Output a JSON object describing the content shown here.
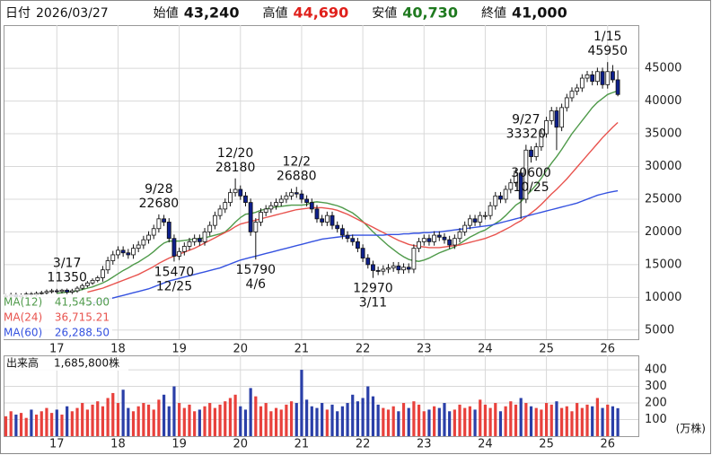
{
  "header": {
    "items": [
      {
        "label": "日付",
        "value": "2026/03/27",
        "color": "#111111"
      },
      {
        "label": "始値",
        "value": "43,240",
        "color": "#111111"
      },
      {
        "label": "高値",
        "value": "44,690",
        "color": "#e0201b"
      },
      {
        "label": "安値",
        "value": "40,730",
        "color": "#1f7a1f"
      },
      {
        "label": "終値",
        "value": "41,000",
        "color": "#111111"
      }
    ]
  },
  "chart_data": [
    {
      "type": "candlestick",
      "up_color": "#ffffff",
      "down_color": "#0d1f8c",
      "edge_color": "#111111",
      "grid": true,
      "ylim": [
        3600,
        51600
      ],
      "yticks": [
        5000,
        10000,
        15000,
        20000,
        25000,
        30000,
        35000,
        40000,
        45000
      ],
      "categories": [
        null,
        null,
        null,
        null,
        null,
        null,
        null,
        null,
        null,
        null,
        "17",
        null,
        null,
        null,
        null,
        null,
        null,
        null,
        null,
        null,
        null,
        null,
        "18",
        null,
        null,
        null,
        null,
        null,
        null,
        null,
        null,
        null,
        null,
        null,
        "19",
        null,
        null,
        null,
        null,
        null,
        null,
        null,
        null,
        null,
        null,
        null,
        "20",
        null,
        null,
        null,
        null,
        null,
        null,
        null,
        null,
        null,
        null,
        null,
        "21",
        null,
        null,
        null,
        null,
        null,
        null,
        null,
        null,
        null,
        null,
        null,
        "22",
        null,
        null,
        null,
        null,
        null,
        null,
        null,
        null,
        null,
        null,
        null,
        "23",
        null,
        null,
        null,
        null,
        null,
        null,
        null,
        null,
        null,
        null,
        null,
        "24",
        null,
        null,
        null,
        null,
        null,
        null,
        null,
        null,
        null,
        null,
        null,
        "25",
        null,
        null,
        null,
        null,
        null,
        null,
        null,
        null,
        null,
        null,
        null,
        "26",
        null,
        null
      ],
      "open": [
        10100,
        10200,
        10400,
        10100,
        10300,
        10500,
        10400,
        10600,
        10700,
        10900,
        11000,
        10900,
        11100,
        10800,
        11000,
        11400,
        11800,
        12200,
        12600,
        13000,
        14200,
        15600,
        16500,
        17200,
        16800,
        16500,
        17500,
        18000,
        18800,
        19500,
        20500,
        22000,
        21500,
        19000,
        16300,
        17000,
        17800,
        18500,
        19000,
        18500,
        20000,
        21000,
        22500,
        23500,
        24500,
        26000,
        26500,
        25500,
        24500,
        20000,
        21500,
        23000,
        23500,
        24000,
        24500,
        25000,
        25500,
        26000,
        25800,
        25000,
        24500,
        23500,
        22000,
        21500,
        22500,
        21000,
        20500,
        19500,
        19000,
        18500,
        17500,
        16000,
        15000,
        14100,
        14000,
        14300,
        14500,
        14800,
        14200,
        14600,
        14300,
        17500,
        18500,
        19000,
        18500,
        19500,
        19200,
        18800,
        18000,
        19000,
        20000,
        21000,
        22000,
        21500,
        22500,
        22500,
        24000,
        25500,
        25000,
        26500,
        27500,
        29000,
        25000,
        32500,
        31500,
        33000,
        35000,
        37000,
        38500,
        36000,
        39000,
        40500,
        41500,
        42000,
        43500,
        44000,
        43000,
        44500,
        42500,
        44500,
        43240
      ],
      "high": [
        10500,
        10700,
        10700,
        10600,
        10800,
        10800,
        10900,
        11000,
        11200,
        11300,
        11300,
        11300,
        11350,
        11300,
        11700,
        12100,
        12500,
        12900,
        13300,
        14800,
        16200,
        17100,
        17800,
        17800,
        17400,
        18100,
        18600,
        19400,
        20100,
        21100,
        22680,
        22600,
        22100,
        19600,
        17600,
        18400,
        19100,
        19600,
        19600,
        20600,
        21600,
        23100,
        24100,
        25100,
        26600,
        28180,
        27100,
        26100,
        25100,
        22100,
        23600,
        24100,
        24600,
        25100,
        25600,
        26100,
        26600,
        26880,
        26400,
        25600,
        25100,
        24100,
        22600,
        23100,
        23100,
        21600,
        21100,
        20100,
        19600,
        19100,
        18100,
        16600,
        15600,
        14700,
        14900,
        15100,
        15400,
        15400,
        15200,
        15200,
        18100,
        19100,
        19600,
        19600,
        20100,
        20100,
        19800,
        19400,
        19600,
        20600,
        21600,
        22600,
        22600,
        23100,
        23100,
        24600,
        26100,
        26100,
        27100,
        28100,
        29600,
        29600,
        33320,
        33100,
        33600,
        35600,
        37600,
        39100,
        39100,
        39600,
        41100,
        42100,
        42600,
        44100,
        44600,
        44600,
        45100,
        45100,
        45950,
        45500,
        44690
      ],
      "low": [
        9800,
        9900,
        9800,
        9800,
        10000,
        10100,
        10100,
        10300,
        10400,
        10600,
        10600,
        10600,
        10500,
        10500,
        10700,
        11100,
        11500,
        11900,
        12300,
        12400,
        13600,
        15000,
        15900,
        16200,
        15900,
        15900,
        16900,
        17400,
        18200,
        18900,
        19900,
        20900,
        18400,
        15470,
        15700,
        16400,
        17200,
        17900,
        17900,
        17900,
        19400,
        20400,
        21900,
        22900,
        23900,
        25400,
        24900,
        23900,
        19400,
        15790,
        20900,
        22400,
        22900,
        23400,
        23900,
        24400,
        24900,
        25200,
        24400,
        23900,
        22900,
        21400,
        20900,
        20900,
        20400,
        19900,
        18900,
        18400,
        17900,
        16900,
        15400,
        14400,
        12970,
        13400,
        13400,
        13700,
        13900,
        13600,
        13600,
        13700,
        13700,
        16900,
        17900,
        17900,
        17900,
        18600,
        18200,
        17400,
        17400,
        18400,
        19400,
        20400,
        20900,
        20900,
        21900,
        21900,
        23400,
        24400,
        24400,
        25900,
        26900,
        22000,
        24400,
        30600,
        30900,
        32400,
        34400,
        36400,
        32500,
        35400,
        38400,
        39900,
        40900,
        41400,
        42900,
        42400,
        42400,
        41900,
        41900,
        42800,
        40730
      ],
      "close": [
        10200,
        10400,
        10100,
        10300,
        10500,
        10400,
        10600,
        10700,
        10900,
        11000,
        10900,
        11100,
        10800,
        11000,
        11400,
        11800,
        12200,
        12600,
        13000,
        14200,
        15600,
        16500,
        17200,
        16800,
        16500,
        17500,
        18000,
        18800,
        19500,
        20500,
        22000,
        21500,
        19000,
        16300,
        17000,
        17800,
        18500,
        19000,
        18500,
        20000,
        21000,
        22500,
        23500,
        24500,
        26000,
        26500,
        25500,
        24500,
        20000,
        21500,
        23000,
        23500,
        24000,
        24500,
        25000,
        25500,
        26000,
        25800,
        25000,
        24500,
        23500,
        22000,
        21500,
        22500,
        21000,
        20500,
        19500,
        19000,
        18500,
        17500,
        16000,
        15000,
        14100,
        14000,
        14300,
        14500,
        14800,
        14200,
        14600,
        14300,
        17500,
        18500,
        19000,
        18500,
        19500,
        19200,
        18800,
        18000,
        19000,
        20000,
        21000,
        22000,
        21500,
        22500,
        22500,
        24000,
        25500,
        25000,
        26500,
        27500,
        29000,
        25000,
        32500,
        31500,
        33000,
        35000,
        37000,
        38500,
        36000,
        39000,
        40500,
        41500,
        42000,
        43500,
        44000,
        43000,
        44500,
        42500,
        44500,
        43240,
        41000
      ],
      "annotations": [
        {
          "date": "3/17",
          "value": 11350
        },
        {
          "date": "9/28",
          "value": 22680
        },
        {
          "date": "12/25",
          "value": 15470
        },
        {
          "date": "12/20",
          "value": 28180
        },
        {
          "date": "4/6",
          "value": 15790
        },
        {
          "date": "12/2",
          "value": 26880
        },
        {
          "date": "3/11",
          "value": 12970
        },
        {
          "date": "9/27",
          "value": 33320
        },
        {
          "date": "10/25",
          "value": 30600
        },
        {
          "date": "1/15",
          "value": 45950
        }
      ],
      "series": [
        {
          "name": "MA(12)",
          "color": "#4f9a4a",
          "value_label": "41,545.00",
          "values": [
            null,
            null,
            null,
            null,
            null,
            null,
            null,
            null,
            null,
            null,
            10600,
            10700,
            10800,
            10900,
            11000,
            11200,
            11400,
            11600,
            11900,
            12200,
            12600,
            13100,
            13600,
            14100,
            14500,
            15000,
            15400,
            15900,
            16400,
            17000,
            17700,
            18300,
            18600,
            18600,
            18600,
            18700,
            18800,
            18900,
            19000,
            19100,
            19300,
            19500,
            19700,
            20000,
            20700,
            21500,
            22200,
            22700,
            22800,
            23000,
            23300,
            23500,
            23700,
            23800,
            23900,
            24000,
            24100,
            24100,
            24100,
            24200,
            24500,
            24600,
            24500,
            24400,
            24200,
            24000,
            23700,
            23300,
            22900,
            22300,
            21600,
            20800,
            20000,
            19300,
            18600,
            17900,
            17300,
            16700,
            16200,
            15800,
            15600,
            15500,
            15700,
            16000,
            16400,
            16800,
            17100,
            17400,
            17700,
            18200,
            18700,
            19200,
            19600,
            20000,
            20300,
            20800,
            21300,
            21800,
            22500,
            23300,
            24100,
            24600,
            25500,
            26300,
            27200,
            28200,
            29400,
            30500,
            31500,
            32600,
            33800,
            35000,
            36000,
            37000,
            38000,
            39000,
            39800,
            40400,
            41000,
            41300,
            41545
          ]
        },
        {
          "name": "MA(24)",
          "color": "#e8534e",
          "value_label": "36,715.21",
          "values": [
            null,
            null,
            null,
            null,
            null,
            null,
            null,
            null,
            null,
            null,
            null,
            null,
            null,
            null,
            null,
            null,
            10800,
            11000,
            11200,
            11400,
            11700,
            12000,
            12300,
            12600,
            12900,
            13200,
            13500,
            13900,
            14300,
            14700,
            15200,
            15600,
            16000,
            16300,
            16600,
            16900,
            17200,
            17500,
            17900,
            18300,
            18700,
            19100,
            19500,
            19900,
            20300,
            20800,
            21200,
            21400,
            21600,
            21800,
            22000,
            22200,
            22400,
            22600,
            22800,
            23000,
            23200,
            23400,
            23500,
            23600,
            23700,
            23700,
            23700,
            23600,
            23500,
            23300,
            23000,
            22700,
            22300,
            21900,
            21500,
            21100,
            20700,
            20300,
            19900,
            19500,
            19100,
            18700,
            18400,
            18100,
            17900,
            17800,
            17700,
            17600,
            17600,
            17600,
            17700,
            17800,
            17900,
            18000,
            18200,
            18400,
            18600,
            18800,
            19000,
            19300,
            19600,
            20000,
            20400,
            20800,
            21300,
            21700,
            22300,
            22900,
            23500,
            24200,
            25000,
            25800,
            26500,
            27300,
            28100,
            29000,
            29900,
            30800,
            31700,
            32600,
            33500,
            34400,
            35200,
            36000,
            36715.21
          ]
        },
        {
          "name": "MA(60)",
          "color": "#3552e0",
          "value_label": "26,288.50",
          "values": [
            null,
            null,
            null,
            null,
            null,
            null,
            null,
            null,
            null,
            null,
            null,
            null,
            null,
            null,
            null,
            null,
            8900,
            9100,
            9300,
            9500,
            9700,
            9900,
            10100,
            10300,
            10500,
            10700,
            10900,
            11100,
            11300,
            11600,
            11900,
            12200,
            12500,
            12700,
            12900,
            13100,
            13300,
            13500,
            13700,
            13900,
            14100,
            14300,
            14500,
            14800,
            15100,
            15400,
            15700,
            15900,
            16100,
            16300,
            16500,
            16700,
            16900,
            17100,
            17300,
            17500,
            17700,
            17900,
            18100,
            18300,
            18500,
            18700,
            18900,
            19000,
            19100,
            19200,
            19300,
            19400,
            19500,
            19500,
            19500,
            19500,
            19500,
            19500,
            19500,
            19600,
            19600,
            19600,
            19700,
            19700,
            19800,
            19800,
            19900,
            19900,
            20000,
            20000,
            20100,
            20200,
            20300,
            20400,
            20500,
            20600,
            20700,
            20800,
            20900,
            21000,
            21200,
            21400,
            21600,
            21800,
            22000,
            22200,
            22400,
            22600,
            22800,
            23000,
            23200,
            23400,
            23600,
            23800,
            24000,
            24200,
            24400,
            24700,
            25000,
            25300,
            25600,
            25800,
            26000,
            26150,
            26288.5
          ]
        }
      ]
    },
    {
      "type": "bar",
      "name": "出来高",
      "label": "1,685,800株",
      "unit": "(万株)",
      "up_color": "#e8413c",
      "down_color": "#2a3fa8",
      "grid": true,
      "ylim": [
        0,
        487
      ],
      "yticks": [
        100,
        200,
        300,
        400
      ],
      "values": [
        120,
        150,
        130,
        140,
        110,
        160,
        130,
        150,
        170,
        140,
        160,
        130,
        180,
        150,
        170,
        200,
        160,
        190,
        210,
        180,
        230,
        260,
        200,
        280,
        170,
        150,
        180,
        200,
        190,
        160,
        220,
        250,
        180,
        300,
        200,
        170,
        190,
        150,
        160,
        180,
        200,
        170,
        190,
        210,
        230,
        250,
        180,
        160,
        290,
        240,
        180,
        200,
        150,
        170,
        160,
        190,
        210,
        200,
        400,
        220,
        180,
        170,
        200,
        160,
        190,
        150,
        180,
        200,
        250,
        210,
        230,
        300,
        240,
        190,
        170,
        160,
        180,
        150,
        200,
        170,
        210,
        190,
        150,
        160,
        180,
        170,
        200,
        150,
        160,
        190,
        170,
        180,
        160,
        220,
        190,
        170,
        200,
        150,
        180,
        210,
        190,
        230,
        200,
        180,
        170,
        160,
        200,
        190,
        210,
        170,
        180,
        150,
        200,
        170,
        190,
        180,
        230,
        170,
        190,
        180,
        168.58
      ]
    }
  ]
}
